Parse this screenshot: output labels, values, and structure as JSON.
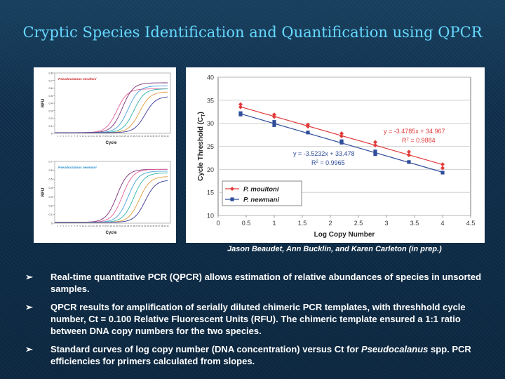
{
  "title": "Cryptic Species Identification and Quantification using QPCR",
  "credit": "Jason Beaudet, Ann Bucklin, and Karen Carleton (in prep.)",
  "bullets": [
    {
      "arrow": "➢",
      "html": "Real-time quantitative PCR (QPCR) allows estimation of relative abundances of species in unsorted samples."
    },
    {
      "arrow": "➢",
      "html": "QPCR results for amplification of serially diluted chimeric PCR templates, with threshhold cycle number, Ct = 0.100 Relative Fluorescent Units (RFU). The chimeric template ensured a 1:1 ratio between DNA copy numbers for the two species."
    },
    {
      "arrow": "➢",
      "html": "Standard curves of log copy number (DNA concentration) versus Ct for <i>Pseudocalanus</i> spp. PCR efficiencies for primers calculated from slopes."
    }
  ],
  "colors": {
    "moultoni": "#e23a3a",
    "newmani": "#2f4d9a",
    "title": "#66d8ff"
  },
  "chart_data": [
    {
      "type": "line",
      "title": "Pseudocalanus moultoni",
      "xlabel": "Cycle",
      "ylabel": "RFU",
      "xlim": [
        0,
        40
      ],
      "ylim": [
        0,
        0.8
      ],
      "yticks": [
        "0.8",
        "0.7",
        "0.6",
        "0.5",
        "0.4",
        "0.3",
        "0.2",
        "0.1",
        "0"
      ],
      "series": [
        {
          "values": {
            "midpoint": 22,
            "plateau": 0.58
          }
        },
        {
          "values": {
            "midpoint": 24,
            "plateau": 0.66
          }
        },
        {
          "values": {
            "midpoint": 26,
            "plateau": 0.62
          }
        },
        {
          "values": {
            "midpoint": 28,
            "plateau": 0.58
          }
        },
        {
          "values": {
            "midpoint": 30,
            "plateau": 0.54
          }
        },
        {
          "values": {
            "midpoint": 32,
            "plateau": 0.48
          }
        }
      ],
      "colors": [
        "#e0609a",
        "#7a2f7a",
        "#4aa0d8",
        "#2bb3a8",
        "#e09a3a",
        "#3a3a9a"
      ]
    },
    {
      "type": "line",
      "title": "Pseudocalanus newmani",
      "xlabel": "Cycle",
      "ylabel": "RFU",
      "xlim": [
        0,
        40
      ],
      "ylim": [
        0,
        0.7
      ],
      "yticks": [
        "0.7",
        "0.6",
        "0.5",
        "0.4",
        "0.3",
        "0.2",
        "0.1",
        "0"
      ],
      "series": [
        {
          "values": {
            "midpoint": 22,
            "plateau": 0.6
          }
        },
        {
          "values": {
            "midpoint": 24,
            "plateau": 0.6
          }
        },
        {
          "values": {
            "midpoint": 26,
            "plateau": 0.58
          }
        },
        {
          "values": {
            "midpoint": 28,
            "plateau": 0.56
          }
        },
        {
          "values": {
            "midpoint": 30,
            "plateau": 0.52
          }
        },
        {
          "values": {
            "midpoint": 32,
            "plateau": 0.48
          }
        }
      ],
      "colors": [
        "#7a2f7a",
        "#e0609a",
        "#4aa0d8",
        "#2bb3a8",
        "#e09a3a",
        "#3a3a9a"
      ]
    },
    {
      "type": "scatter",
      "xlabel": "Log Copy Number",
      "ylabel": "Cycle Threshold (C",
      "ylabel_sub": "T",
      "ylabel_close": ")",
      "xlim": [
        0,
        4.5
      ],
      "ylim": [
        10,
        40
      ],
      "xticks": [
        0,
        0.5,
        1,
        1.5,
        2,
        2.5,
        3,
        3.5,
        4,
        4.5
      ],
      "yticks": [
        10,
        15,
        20,
        25,
        30,
        35,
        40
      ],
      "grid": true,
      "legend_position": "bottom-left",
      "series": [
        {
          "name": "P. moultoni",
          "marker": "diamond",
          "x": [
            0.4,
            0.4,
            1.0,
            1.0,
            1.6,
            1.6,
            2.2,
            2.2,
            2.8,
            2.8,
            3.4,
            3.4,
            4.0,
            4.0
          ],
          "y": [
            34.1,
            33.5,
            31.9,
            31.4,
            29.7,
            29.3,
            27.8,
            27.2,
            25.9,
            25.2,
            23.8,
            23.1,
            21.1,
            20.3
          ],
          "fit": {
            "slope": -3.4785,
            "intercept": 34.967,
            "equation": "y = -3.4785x + 34.967",
            "r2_label": "R",
            "r2_exp": "2",
            "r2_value": " = 0.9884"
          }
        },
        {
          "name": "P. newmani",
          "marker": "square",
          "x": [
            0.4,
            0.4,
            1.0,
            1.0,
            1.6,
            2.2,
            2.2,
            2.8,
            2.8,
            3.4,
            4.0
          ],
          "y": [
            32.2,
            31.9,
            30.3,
            29.6,
            28.0,
            26.1,
            25.8,
            23.9,
            23.3,
            21.6,
            19.3
          ],
          "fit": {
            "slope": -3.5232,
            "intercept": 33.478,
            "equation": "y = -3.5232x + 33.478",
            "r2_label": "R",
            "r2_exp": "2",
            "r2_value": " = 0.9965"
          }
        }
      ]
    }
  ]
}
